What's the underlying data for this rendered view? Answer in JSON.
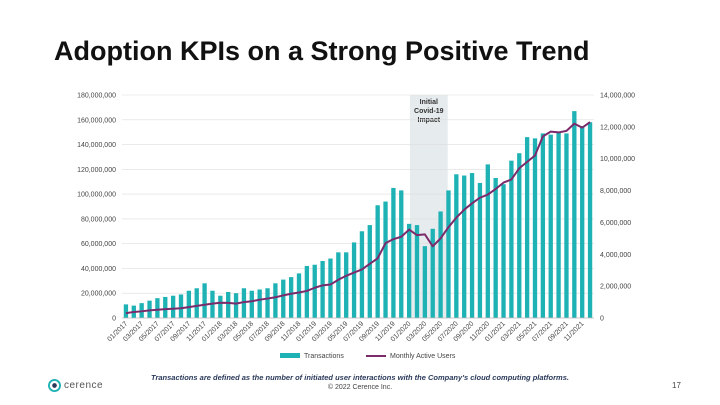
{
  "slide": {
    "title": "Adoption KPIs on a Strong Positive Trend",
    "footnote": "Transactions are defined as the number of initiated user interactions with the Company's cloud computing platforms.",
    "copyright": "© 2022 Cerence Inc.",
    "page_number": "17",
    "logo_text": "cerence",
    "colors": {
      "bar": "#1FB2B5",
      "line": "#7B2B6B",
      "shade": "#DCE2E5",
      "title": "#111111"
    }
  },
  "chart_data": {
    "type": "bar+line",
    "title": "",
    "annotation": "Initial Covid-19 Impact",
    "annotation_lines": [
      "Initial",
      "Covid-19",
      "Impact"
    ],
    "annotation_range": [
      "02/2020",
      "06/2020"
    ],
    "x_tick_labels": [
      "01/2017",
      "03/2017",
      "05/2017",
      "07/2017",
      "09/2017",
      "11/2017",
      "01/2018",
      "03/2018",
      "05/2018",
      "07/2018",
      "09/2018",
      "11/2018",
      "01/2019",
      "03/2019",
      "05/2019",
      "07/2019",
      "09/2019",
      "11/2019",
      "01/2020",
      "03/2020",
      "05/2020",
      "07/2020",
      "09/2020",
      "11/2020",
      "01/2021",
      "03/2021",
      "05/2021",
      "07/2021",
      "09/2021",
      "11/2021"
    ],
    "left_axis": {
      "min": 0,
      "max": 180000000,
      "step": 20000000,
      "tick_labels": [
        "0",
        "20,000,000",
        "40,000,000",
        "60,000,000",
        "80,000,000",
        "100,000,000",
        "120,000,000",
        "140,000,000",
        "160,000,000",
        "180,000,000"
      ]
    },
    "right_axis": {
      "min": 0,
      "max": 14000000,
      "step": 2000000,
      "tick_labels": [
        "0",
        "2,000,000",
        "4,000,000",
        "6,000,000",
        "8,000,000",
        "10,000,000",
        "12,000,000",
        "14,000,000"
      ]
    },
    "series": [
      {
        "name": "Transactions",
        "kind": "bar",
        "axis": "left",
        "values": [
          11000000,
          10000000,
          12000000,
          14000000,
          16000000,
          17000000,
          18000000,
          19000000,
          22000000,
          24000000,
          28000000,
          22000000,
          18000000,
          21000000,
          20000000,
          24000000,
          22000000,
          23000000,
          24000000,
          28000000,
          31000000,
          33000000,
          36000000,
          42000000,
          43000000,
          46000000,
          48000000,
          53000000,
          53000000,
          61000000,
          70000000,
          75000000,
          91000000,
          94000000,
          105000000,
          103000000,
          76000000,
          75000000,
          58000000,
          72000000,
          86000000,
          103000000,
          116000000,
          115000000,
          117000000,
          109000000,
          124000000,
          113000000,
          108000000,
          127000000,
          133000000,
          146000000,
          145000000,
          149000000,
          148000000,
          150000000,
          149000000,
          167000000,
          155000000,
          158000000
        ]
      },
      {
        "name": "Monthly Active Users",
        "kind": "line",
        "axis": "right",
        "values": [
          300000,
          380000,
          420000,
          480000,
          520000,
          560000,
          580000,
          610000,
          680000,
          760000,
          830000,
          900000,
          960000,
          950000,
          900000,
          1000000,
          1050000,
          1150000,
          1220000,
          1300000,
          1420000,
          1520000,
          1600000,
          1700000,
          1900000,
          2050000,
          2100000,
          2400000,
          2650000,
          2850000,
          3050000,
          3400000,
          3750000,
          4700000,
          4950000,
          5100000,
          5550000,
          5200000,
          5250000,
          4500000,
          5000000,
          5700000,
          6300000,
          6800000,
          7200000,
          7550000,
          7750000,
          8100000,
          8500000,
          8700000,
          9400000,
          9800000,
          10200000,
          11400000,
          11700000,
          11650000,
          11750000,
          12200000,
          11950000,
          12300000
        ]
      }
    ],
    "legend": [
      "Transactions",
      "Monthly Active Users"
    ],
    "legend_position": "bottom",
    "grid": true
  }
}
